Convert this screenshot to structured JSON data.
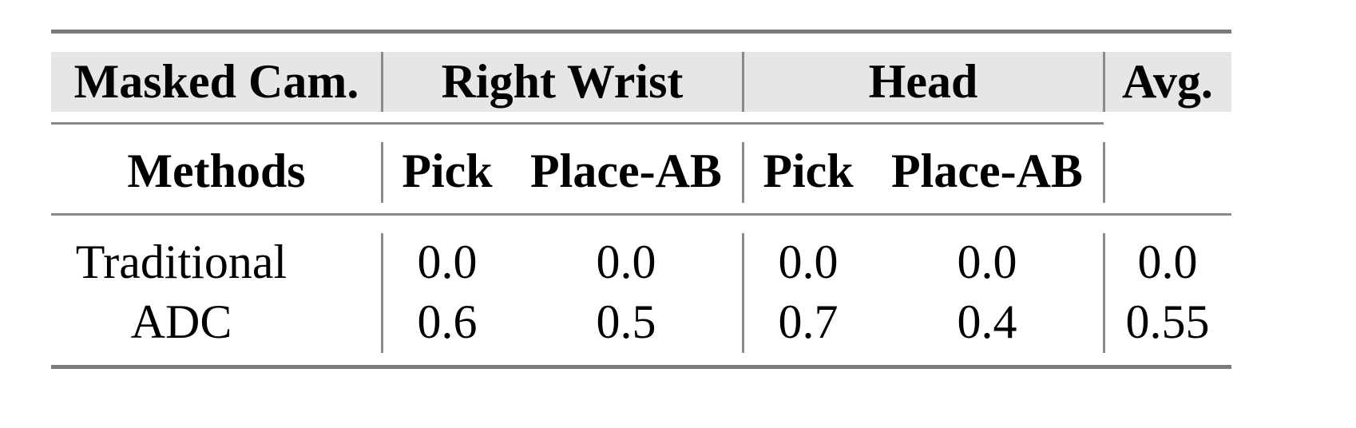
{
  "table": {
    "header_row1": {
      "masked_cam": "Masked Cam.",
      "groups": [
        "Right Wrist",
        "Head"
      ],
      "avg": "Avg."
    },
    "header_row2": {
      "methods": "Methods",
      "subcolumns": [
        "Pick",
        "Place-AB",
        "Pick",
        "Place-AB"
      ]
    },
    "rows": [
      {
        "method": "Traditional",
        "values": [
          "0.0",
          "0.0",
          "0.0",
          "0.0"
        ],
        "avg": "0.0"
      },
      {
        "method": "ADC",
        "values": [
          "0.6",
          "0.5",
          "0.7",
          "0.4"
        ],
        "avg": "0.55"
      }
    ],
    "header_bg_color": "#e6e6e6",
    "rule_color": "#7a7a7a"
  }
}
